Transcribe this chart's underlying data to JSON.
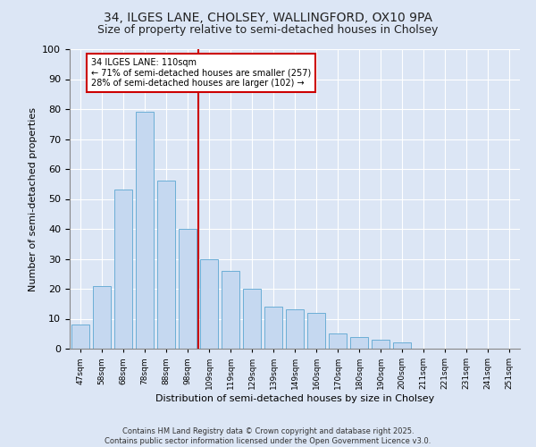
{
  "title1": "34, ILGES LANE, CHOLSEY, WALLINGFORD, OX10 9PA",
  "title2": "Size of property relative to semi-detached houses in Cholsey",
  "xlabel": "Distribution of semi-detached houses by size in Cholsey",
  "ylabel": "Number of semi-detached properties",
  "footnote1": "Contains HM Land Registry data © Crown copyright and database right 2025.",
  "footnote2": "Contains public sector information licensed under the Open Government Licence v3.0.",
  "bar_labels": [
    "47sqm",
    "58sqm",
    "68sqm",
    "78sqm",
    "88sqm",
    "98sqm",
    "109sqm",
    "119sqm",
    "129sqm",
    "139sqm",
    "149sqm",
    "160sqm",
    "170sqm",
    "180sqm",
    "190sqm",
    "200sqm",
    "211sqm",
    "221sqm",
    "231sqm",
    "241sqm",
    "251sqm"
  ],
  "bar_values": [
    8,
    21,
    53,
    79,
    56,
    40,
    30,
    26,
    20,
    14,
    13,
    12,
    5,
    4,
    3,
    2,
    0,
    0,
    0,
    0,
    0
  ],
  "bar_color": "#c5d8f0",
  "bar_edge_color": "#6baed6",
  "vline_color": "#cc0000",
  "annotation_text": "34 ILGES LANE: 110sqm\n← 71% of semi-detached houses are smaller (257)\n28% of semi-detached houses are larger (102) →",
  "annotation_box_color": "#cc0000",
  "bg_color": "#dce6f5",
  "plot_bg_color": "#dce6f5",
  "ylim": [
    0,
    100
  ],
  "yticks": [
    0,
    10,
    20,
    30,
    40,
    50,
    60,
    70,
    80,
    90,
    100
  ],
  "title1_fontsize": 10,
  "title2_fontsize": 9
}
